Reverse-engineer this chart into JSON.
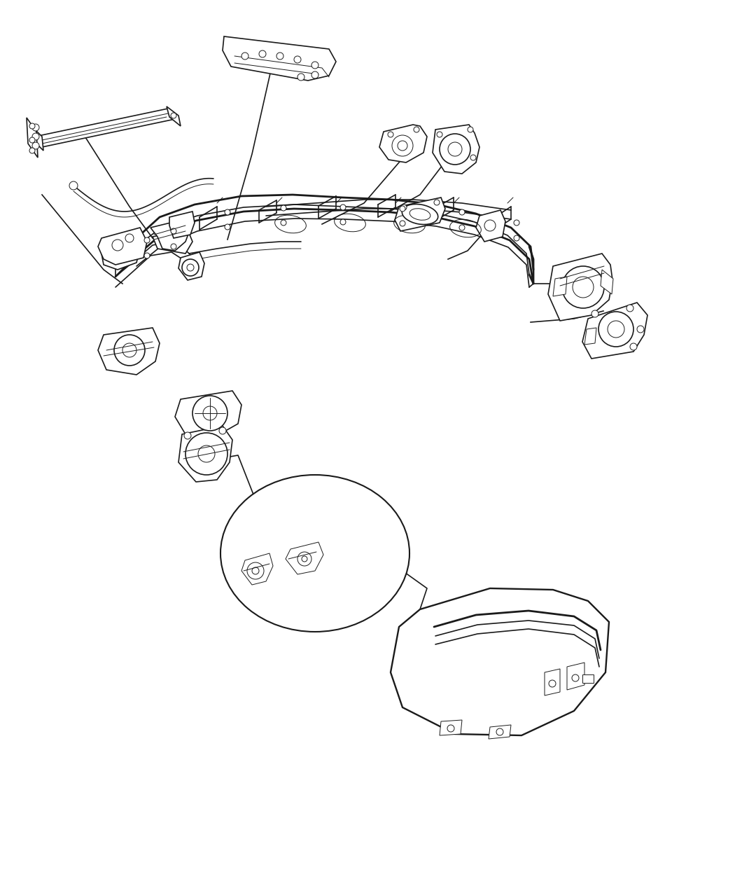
{
  "background_color": "#ffffff",
  "line_color": "#1a1a1a",
  "fig_width": 10.5,
  "fig_height": 12.75,
  "dpi": 100,
  "lw_main": 1.2,
  "lw_thick": 2.0,
  "lw_thin": 0.7
}
